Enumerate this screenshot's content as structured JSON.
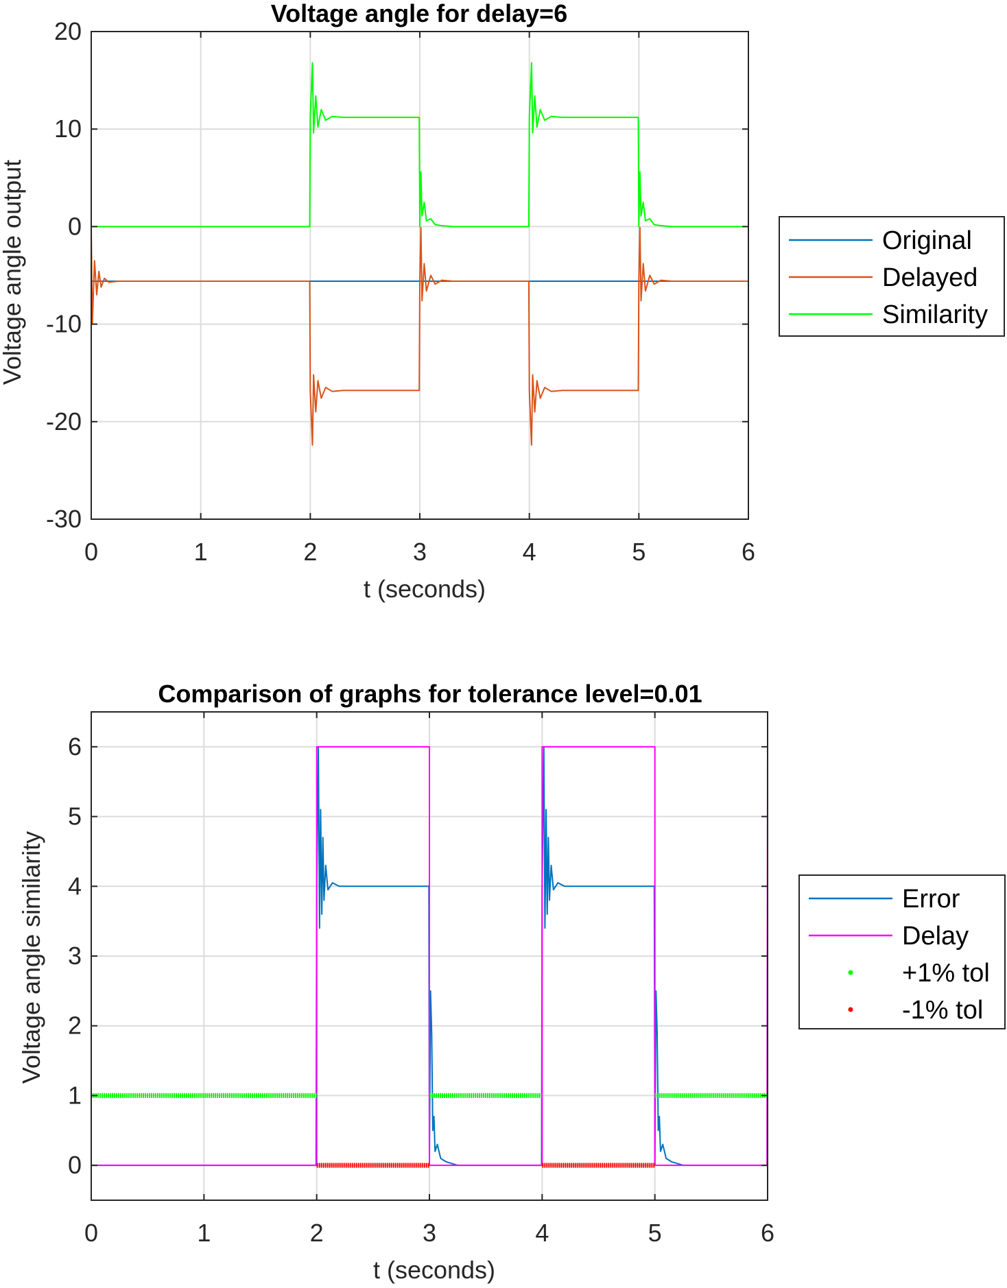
{
  "chart_data": [
    {
      "type": "line",
      "title": "Voltage angle for delay=6",
      "xlabel": "t (seconds)",
      "ylabel": "Voltage angle output",
      "xlim": [
        0,
        6
      ],
      "ylim": [
        -30,
        20
      ],
      "xticks": [
        0,
        1,
        2,
        3,
        4,
        5,
        6
      ],
      "yticks": [
        -30,
        -20,
        -10,
        0,
        10,
        20
      ],
      "grid": true,
      "legend_position": "outside-right",
      "series": [
        {
          "name": "Original",
          "color": "#0072BD",
          "x": [
            0,
            6
          ],
          "y": [
            -5.6,
            -5.6
          ]
        },
        {
          "name": "Delayed",
          "color": "#D95319",
          "x": [
            0,
            0.01,
            0.03,
            0.05,
            0.07,
            0.09,
            0.12,
            0.16,
            0.25,
            1.995,
            2.0,
            2.02,
            2.03,
            2.05,
            2.07,
            2.1,
            2.14,
            2.2,
            2.3,
            2.995,
            3.0,
            3.01,
            3.02,
            3.04,
            3.06,
            3.1,
            3.14,
            3.2,
            3.3,
            3.995,
            4.0,
            4.02,
            4.03,
            4.05,
            4.07,
            4.1,
            4.14,
            4.2,
            4.3,
            4.995,
            5.0,
            5.01,
            5.02,
            5.04,
            5.06,
            5.1,
            5.14,
            5.2,
            5.3,
            6.0
          ],
          "y": [
            0,
            -10,
            -3.5,
            -7,
            -4.6,
            -6.2,
            -5.3,
            -5.7,
            -5.6,
            -5.6,
            -16.8,
            -22.4,
            -15.2,
            -19,
            -15.8,
            -17.6,
            -16.5,
            -16.9,
            -16.8,
            -16.8,
            -5.6,
            -0.1,
            -7.6,
            -3.8,
            -6.6,
            -5,
            -5.9,
            -5.5,
            -5.6,
            -5.6,
            -16.8,
            -22.4,
            -15.2,
            -19,
            -15.8,
            -17.6,
            -16.5,
            -16.9,
            -16.8,
            -16.8,
            -5.6,
            -0.1,
            -7.6,
            -3.8,
            -6.6,
            -5,
            -5.9,
            -5.5,
            -5.6,
            -5.6
          ]
        },
        {
          "name": "Similarity",
          "color": "#00FF00",
          "x": [
            0,
            1.995,
            2.0,
            2.02,
            2.03,
            2.05,
            2.07,
            2.1,
            2.14,
            2.2,
            2.3,
            2.995,
            3.0,
            3.01,
            3.02,
            3.04,
            3.06,
            3.1,
            3.14,
            3.2,
            3.3,
            3.995,
            4.0,
            4.02,
            4.03,
            4.05,
            4.07,
            4.1,
            4.14,
            4.2,
            4.3,
            4.995,
            5.0,
            5.01,
            5.02,
            5.04,
            5.06,
            5.1,
            5.14,
            5.2,
            5.3,
            6.0
          ],
          "y": [
            0,
            0,
            11.2,
            16.8,
            9.6,
            13.4,
            10.2,
            12,
            10.9,
            11.3,
            11.2,
            11.2,
            0,
            5.6,
            1.1,
            2.5,
            0.6,
            0.8,
            0.2,
            0.1,
            0,
            0,
            11.2,
            16.8,
            9.6,
            13.4,
            10.2,
            12,
            10.9,
            11.3,
            11.2,
            11.2,
            0,
            5.6,
            1.1,
            2.5,
            0.6,
            0.8,
            0.2,
            0.1,
            0,
            0
          ]
        }
      ]
    },
    {
      "type": "line",
      "title": "Comparison of graphs for tolerance level=0.01",
      "xlabel": "t (seconds)",
      "ylabel": "Voltage angle similarity",
      "xlim": [
        0,
        6
      ],
      "ylim": [
        -0.5,
        6.5
      ],
      "xticks": [
        0,
        1,
        2,
        3,
        4,
        5,
        6
      ],
      "yticks": [
        0,
        1,
        2,
        3,
        4,
        5,
        6
      ],
      "grid": true,
      "legend_position": "outside-right",
      "series": [
        {
          "name": "Error",
          "color": "#0072BD",
          "x": [
            0,
            1.995,
            2.0,
            2.015,
            2.025,
            2.035,
            2.045,
            2.055,
            2.065,
            2.08,
            2.1,
            2.14,
            2.2,
            2.3,
            2.995,
            3.0,
            3.01,
            3.02,
            3.03,
            3.04,
            3.05,
            3.07,
            3.1,
            3.15,
            3.25,
            3.995,
            4.0,
            4.015,
            4.025,
            4.035,
            4.045,
            4.055,
            4.065,
            4.08,
            4.1,
            4.14,
            4.2,
            4.3,
            4.995,
            5.0,
            5.01,
            5.02,
            5.03,
            5.04,
            5.05,
            5.07,
            5.1,
            5.15,
            5.25,
            6.0
          ],
          "y": [
            0,
            0,
            4,
            6,
            3.4,
            5.1,
            3.6,
            4.7,
            3.8,
            4.3,
            3.95,
            4.05,
            4,
            4,
            4,
            0,
            2.5,
            1.9,
            0.5,
            0.7,
            0.2,
            0.3,
            0.1,
            0.05,
            0,
            0,
            4,
            6,
            3.4,
            5.1,
            3.6,
            4.7,
            3.8,
            4.3,
            3.95,
            4.05,
            4,
            4,
            4,
            0,
            2.5,
            1.9,
            0.5,
            0.7,
            0.2,
            0.3,
            0.1,
            0.05,
            0,
            0
          ]
        },
        {
          "name": "Delay",
          "color": "#FF00FF",
          "x": [
            0,
            2.0,
            2.0,
            3.0,
            3.0,
            4.0,
            4.0,
            5.0,
            5.0,
            5.995,
            6.0
          ],
          "y": [
            0,
            0,
            6,
            6,
            0,
            0,
            6,
            6,
            0,
            0,
            6
          ]
        },
        {
          "name": "+1% tol",
          "color": "#00FF00",
          "marker": "dot",
          "segments": [
            [
              0,
              2.0
            ],
            [
              3.0,
              4.0
            ],
            [
              5.0,
              6.0
            ]
          ],
          "y": 1
        },
        {
          "name": "-1% tol",
          "color": "#FF0000",
          "marker": "dot",
          "segments": [
            [
              2.0,
              3.0
            ],
            [
              4.0,
              5.0
            ]
          ],
          "y": 0
        }
      ]
    }
  ]
}
